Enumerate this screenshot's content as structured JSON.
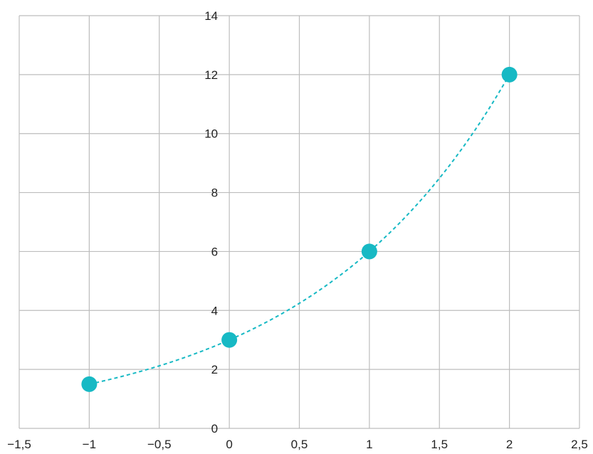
{
  "chart_data": {
    "type": "scatter",
    "x_ticks": [
      -1.5,
      -1,
      -0.5,
      0,
      0.5,
      1,
      1.5,
      2,
      2.5
    ],
    "x_tick_labels": [
      "−1,5",
      "−1",
      "−0,5",
      "0",
      "0,5",
      "1",
      "1,5",
      "2",
      "2,5"
    ],
    "y_ticks": [
      0,
      2,
      4,
      6,
      8,
      10,
      12,
      14
    ],
    "y_tick_labels": [
      "0",
      "2",
      "4",
      "6",
      "8",
      "10",
      "12",
      "14"
    ],
    "xlim": [
      -1.5,
      2.5
    ],
    "ylim": [
      0,
      14
    ],
    "grid": true,
    "title": "",
    "xlabel": "",
    "ylabel": "",
    "series": [
      {
        "points": [
          {
            "x": -1,
            "y": 1.5
          },
          {
            "x": 0,
            "y": 3
          },
          {
            "x": 1,
            "y": 6
          },
          {
            "x": 2,
            "y": 12
          }
        ],
        "color": "#17b9c4",
        "curve": "dashed exponential y = 3·2^x"
      }
    ]
  }
}
